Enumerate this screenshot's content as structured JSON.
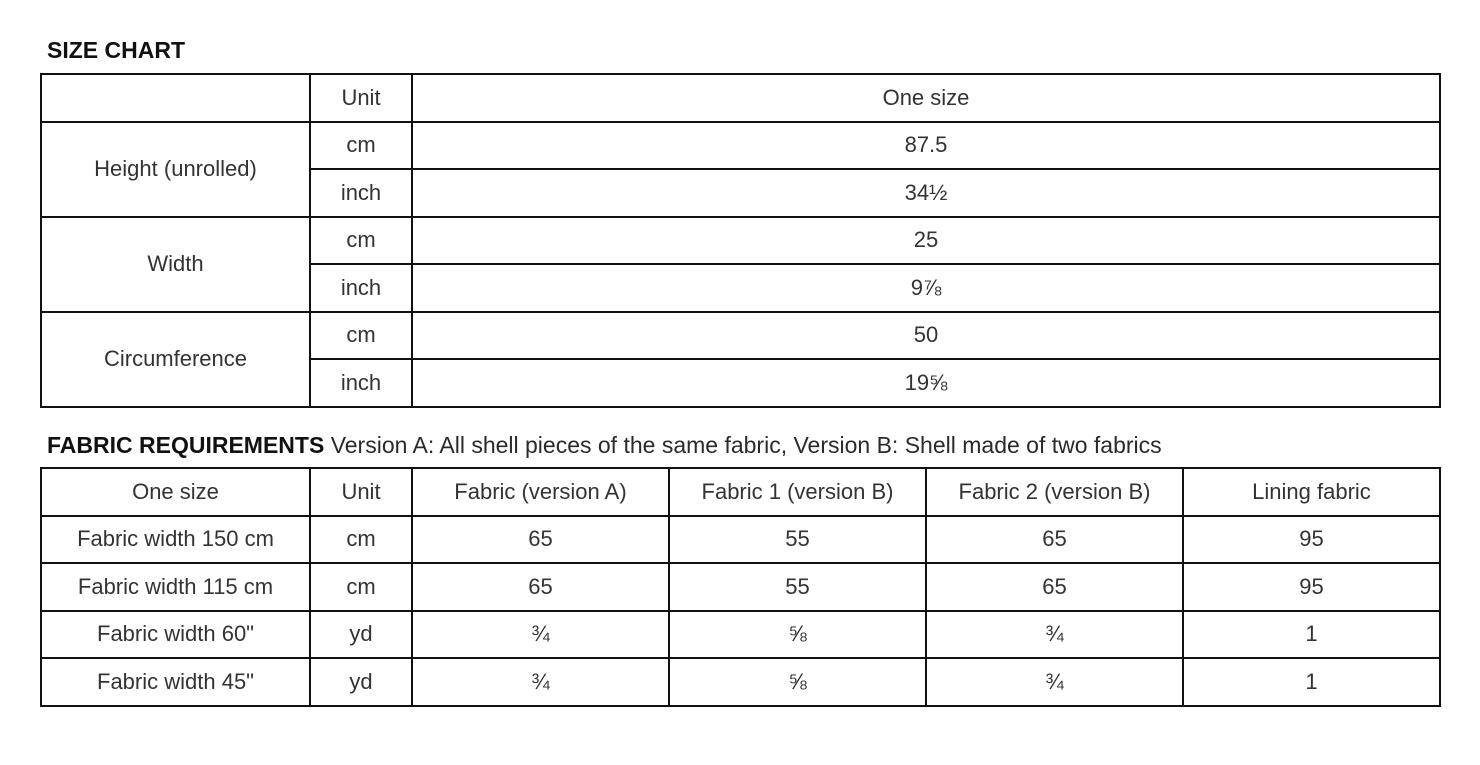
{
  "size_chart": {
    "title": "SIZE CHART",
    "header": [
      "",
      "Unit",
      "One size"
    ],
    "rows": [
      {
        "label": "Height (unrolled)",
        "values": [
          [
            "cm",
            "87.5"
          ],
          [
            "inch",
            "34½"
          ]
        ]
      },
      {
        "label": "Width",
        "values": [
          [
            "cm",
            "25"
          ],
          [
            "inch",
            "9⅞"
          ]
        ]
      },
      {
        "label": "Circumference",
        "values": [
          [
            "cm",
            "50"
          ],
          [
            "inch",
            "19⅝"
          ]
        ]
      }
    ]
  },
  "fabric": {
    "title": "FABRIC REQUIREMENTS",
    "subtitle": "Version A: All shell pieces of the same fabric, Version B: Shell made of two fabrics",
    "header": [
      "One size",
      "Unit",
      "Fabric (version A)",
      "Fabric 1 (version B)",
      "Fabric 2 (version B)",
      "Lining fabric"
    ],
    "rows": [
      [
        "Fabric width 150 cm",
        "cm",
        "65",
        "55",
        "65",
        "95"
      ],
      [
        "Fabric width 115 cm",
        "cm",
        "65",
        "55",
        "65",
        "95"
      ],
      [
        "Fabric width 60\"",
        "yd",
        "¾",
        "⅝",
        "¾",
        "1"
      ],
      [
        "Fabric width 45\"",
        "yd",
        "¾",
        "⅝",
        "¾",
        "1"
      ]
    ]
  }
}
